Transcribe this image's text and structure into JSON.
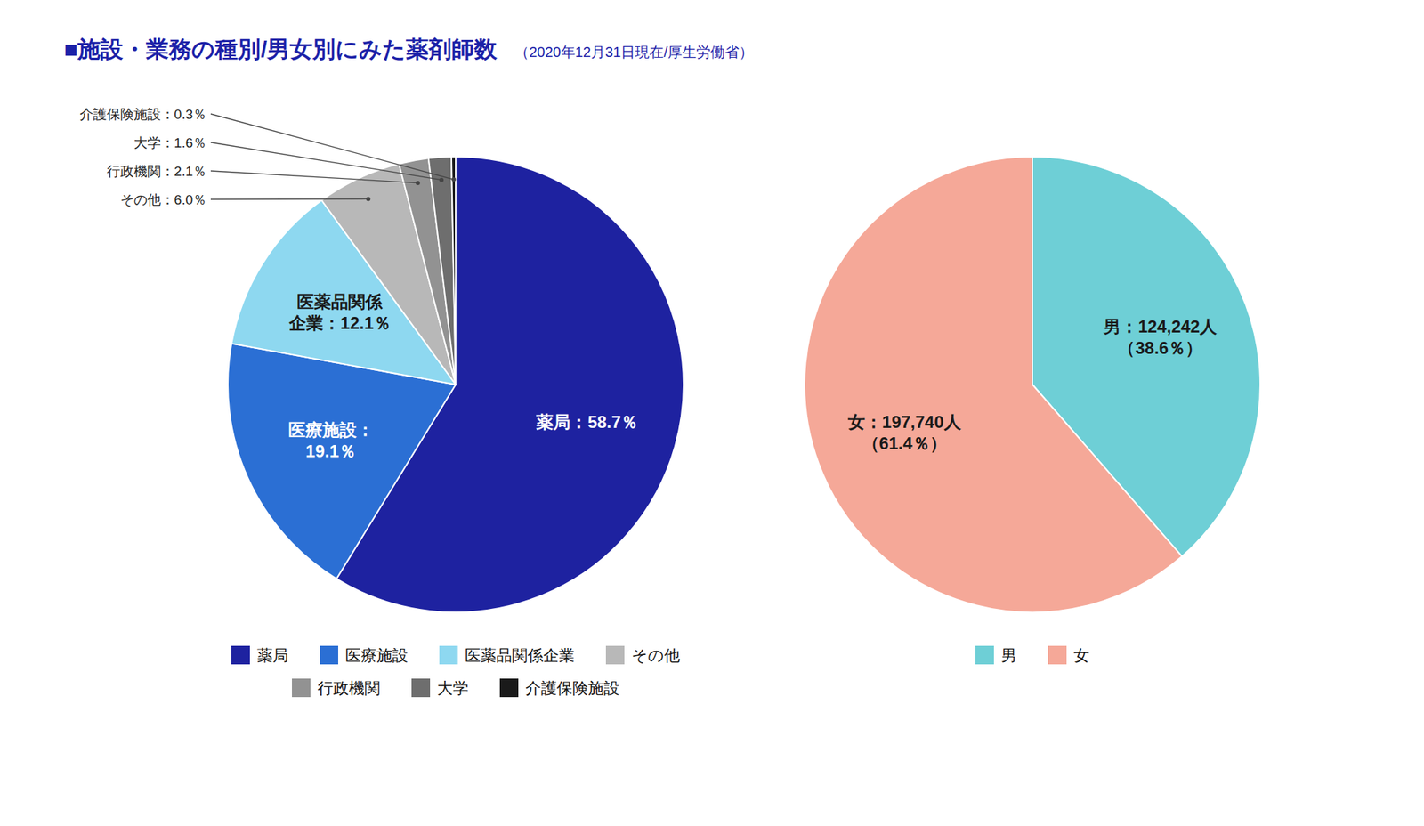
{
  "chart_data": [
    {
      "type": "pie",
      "title": "■施設・業務の種別/男女別にみた薬剤師数",
      "subtitle": "（2020年12月31日現在/厚生労働省）",
      "categories": [
        "薬局",
        "医療施設",
        "医薬品関係企業",
        "その他",
        "行政機関",
        "大学",
        "介護保険施設"
      ],
      "values": [
        58.7,
        19.1,
        12.1,
        6.0,
        2.1,
        1.6,
        0.3
      ],
      "value_labels": [
        "薬局：58.7％",
        "医療施設：\n19.1％",
        "医薬品関係\n企業：12.1％",
        "その他：6.0％",
        "行政機関：2.1％",
        "大学：1.6％",
        "介護保険施設：0.3％"
      ],
      "colors": [
        "#1e22a0",
        "#2b6fd4",
        "#8ed8f0",
        "#b8b8b8",
        "#929292",
        "#6e6e6e",
        "#1a1a1a"
      ],
      "data_labels": true,
      "legend": "bottom"
    },
    {
      "type": "pie",
      "categories": [
        "男",
        "女"
      ],
      "values": [
        38.6,
        61.4
      ],
      "value_labels": [
        "男：124,242人\n（38.6％）",
        "女：197,740人\n（61.4％）"
      ],
      "colors": [
        "#6ecfd6",
        "#f5a898"
      ],
      "data_labels": true,
      "legend": "bottom"
    }
  ]
}
